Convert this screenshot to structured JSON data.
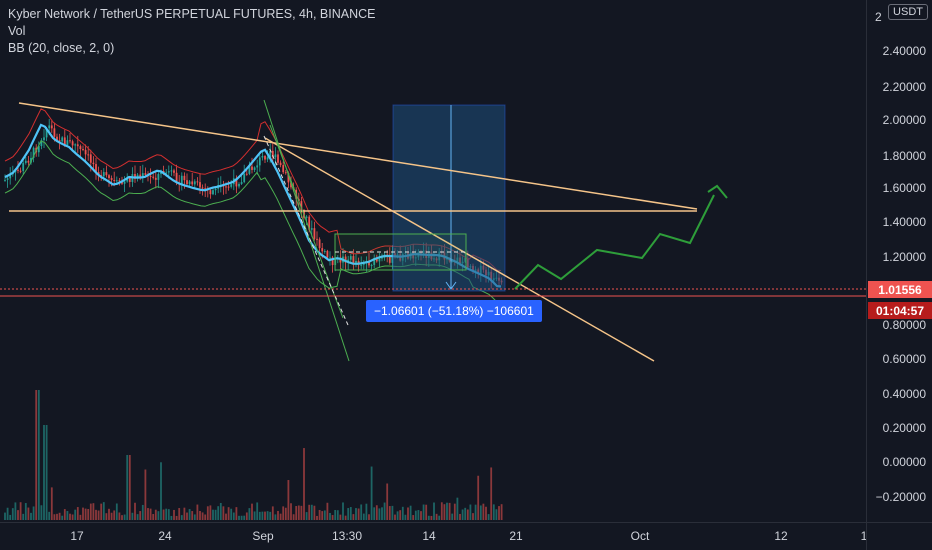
{
  "legend": {
    "symbol": "Kyber Network / TetherUS PERPETUAL FUTURES, 4h, BINANCE",
    "vol": "Vol",
    "bb": "BB (20, close, 2, 0)"
  },
  "price_scale": {
    "currency": "USDT",
    "top_partial": "2",
    "labels": [
      "2.40000",
      "2.20000",
      "2.00000",
      "1.80000",
      "1.60000",
      "1.40000",
      "1.20000",
      "0.80000",
      "0.60000",
      "0.40000",
      "0.20000",
      "0.00000",
      "−0.20000"
    ],
    "current_price": "1.01556",
    "countdown": "01:04:57"
  },
  "time_scale": {
    "labels": [
      "17",
      "24",
      "Sep",
      "13:30",
      "14",
      "21",
      "Oct",
      "12",
      "1"
    ]
  },
  "measure": {
    "label": "−1.06601 (−51.18%) −106601"
  },
  "colors": {
    "background": "#131722",
    "bullish": "#26a69a",
    "bearish": "#ef5350",
    "bb_upper": "#d32f2f",
    "bb_lower": "#4caf50",
    "bb_basis": "#4fc3f7",
    "trendline": "#f5c489",
    "forecast": "#2e9e3a",
    "price_line": "#ef5350",
    "countdown_badge": "#b71c1c",
    "measure_box": "#1e4f7c"
  }
}
